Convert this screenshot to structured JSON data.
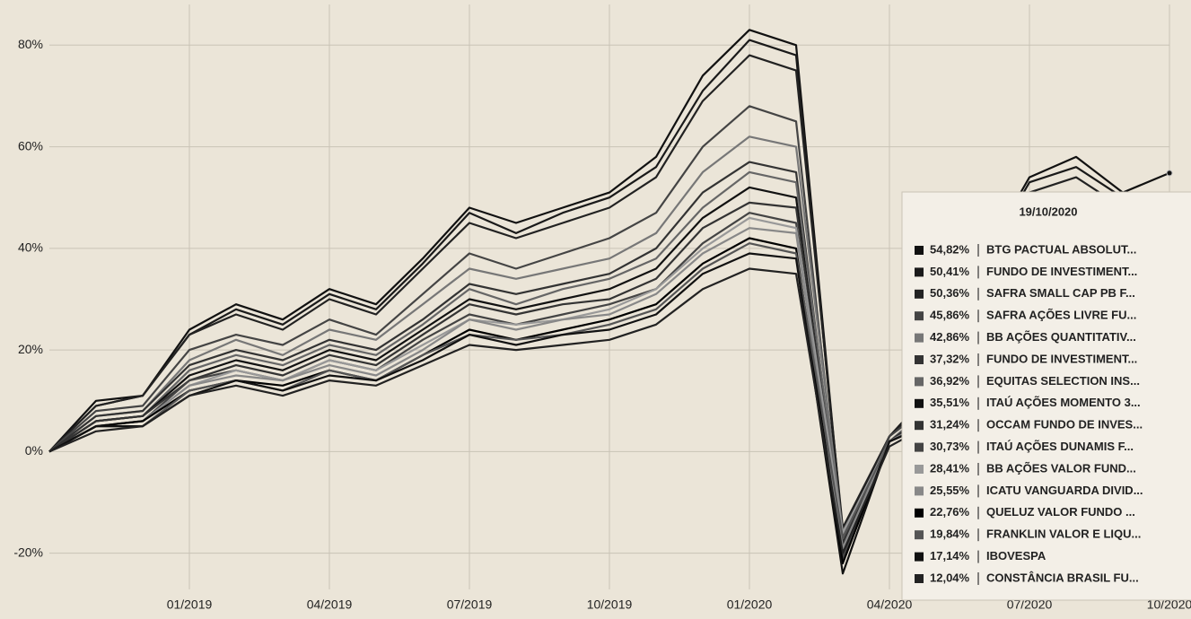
{
  "chart_data": {
    "type": "line",
    "x": [
      "10/2018",
      "11/2018",
      "12/2018",
      "01/2019",
      "02/2019",
      "03/2019",
      "04/2019",
      "05/2019",
      "06/2019",
      "07/2019",
      "08/2019",
      "09/2019",
      "10/2019",
      "11/2019",
      "12/2019",
      "01/2020",
      "02/2020",
      "03/2020",
      "04/2020",
      "05/2020",
      "06/2020",
      "07/2020",
      "08/2020",
      "09/2020",
      "10/2020"
    ],
    "xticks": [
      "01/2019",
      "04/2019",
      "07/2019",
      "10/2019",
      "01/2020",
      "04/2020",
      "07/2020",
      "10/2020"
    ],
    "ylim": [
      -25,
      88
    ],
    "yticks": [
      {
        "value": -20,
        "label": "-20%"
      },
      {
        "value": 0,
        "label": "0%"
      },
      {
        "value": 20,
        "label": "20%"
      },
      {
        "value": 40,
        "label": "40%"
      },
      {
        "value": 60,
        "label": "60%"
      },
      {
        "value": 80,
        "label": "80%"
      }
    ],
    "grid": true,
    "series": [
      {
        "name": "BTG PACTUAL ABSOLUT...",
        "color": "#111111",
        "values": [
          0,
          10,
          11,
          24,
          29,
          26,
          32,
          29,
          38,
          48,
          45,
          48,
          51,
          58,
          74,
          83,
          80,
          -16,
          3,
          13,
          38,
          54,
          58,
          51,
          54.82
        ]
      },
      {
        "name": "FUNDO DE INVESTIMENT...",
        "color": "#1a1a1a",
        "values": [
          0,
          9,
          11,
          23,
          28,
          25,
          31,
          28,
          37,
          47,
          43,
          47,
          50,
          56,
          71,
          81,
          78,
          -17,
          3,
          12,
          37,
          53,
          56,
          50,
          50.41
        ]
      },
      {
        "name": "SAFRA SMALL CAP PB F...",
        "color": "#222222",
        "values": [
          0,
          9,
          11,
          23,
          27,
          24,
          30,
          27,
          36,
          45,
          42,
          45,
          48,
          54,
          69,
          78,
          75,
          -15,
          3,
          12,
          36,
          51,
          54,
          48,
          50.36
        ]
      },
      {
        "name": "SAFRA AÇÕES LIVRE FU...",
        "color": "#444444",
        "values": [
          0,
          8,
          9,
          20,
          23,
          21,
          26,
          23,
          31,
          39,
          36,
          39,
          42,
          47,
          60,
          68,
          65,
          -18,
          3,
          10,
          31,
          44,
          47,
          42,
          45.86
        ]
      },
      {
        "name": "BB AÇÕES QUANTITATIV...",
        "color": "#777777",
        "values": [
          0,
          7,
          8,
          18,
          22,
          19,
          24,
          22,
          29,
          36,
          34,
          36,
          38,
          43,
          55,
          62,
          60,
          -16,
          2,
          10,
          29,
          41,
          43,
          38,
          42.86
        ]
      },
      {
        "name": "FUNDO DE INVESTIMENT...",
        "color": "#333333",
        "values": [
          0,
          7,
          8,
          17,
          20,
          18,
          22,
          20,
          26,
          33,
          31,
          33,
          35,
          40,
          51,
          57,
          55,
          -19,
          2,
          9,
          26,
          37,
          40,
          35,
          37.32
        ]
      },
      {
        "name": "EQUITAS SELECTION INS...",
        "color": "#666666",
        "values": [
          0,
          6,
          7,
          16,
          19,
          17,
          21,
          19,
          25,
          32,
          29,
          32,
          34,
          38,
          48,
          55,
          53,
          -17,
          2,
          8,
          25,
          36,
          38,
          34,
          36.92
        ]
      },
      {
        "name": "ITAÚ AÇÕES MOMENTO 3...",
        "color": "#111111",
        "values": [
          0,
          6,
          7,
          15,
          18,
          16,
          20,
          18,
          24,
          30,
          28,
          30,
          32,
          36,
          46,
          52,
          50,
          -20,
          2,
          8,
          24,
          34,
          36,
          32,
          35.51
        ]
      },
      {
        "name": "OCCAM FUNDO DE INVES...",
        "color": "#333333",
        "values": [
          0,
          6,
          7,
          14,
          17,
          15,
          19,
          17,
          23,
          29,
          27,
          29,
          30,
          34,
          44,
          49,
          48,
          -18,
          2,
          8,
          23,
          32,
          34,
          30,
          31.24
        ]
      },
      {
        "name": "ITAÚ AÇÕES DUNAMIS F...",
        "color": "#444444",
        "values": [
          0,
          5,
          6,
          14,
          16,
          14,
          18,
          16,
          22,
          27,
          25,
          27,
          29,
          32,
          41,
          47,
          45,
          -21,
          2,
          7,
          22,
          31,
          32,
          29,
          30.73
        ]
      },
      {
        "name": "BB AÇÕES VALOR FUND...",
        "color": "#999999",
        "values": [
          0,
          5,
          6,
          13,
          16,
          14,
          18,
          16,
          21,
          26,
          25,
          26,
          28,
          32,
          40,
          46,
          44,
          -16,
          2,
          7,
          21,
          30,
          32,
          28,
          28.41
        ]
      },
      {
        "name": "ICATU VANGUARDA DIVID...",
        "color": "#888888",
        "values": [
          0,
          5,
          6,
          13,
          15,
          14,
          17,
          15,
          20,
          26,
          24,
          26,
          27,
          31,
          39,
          44,
          43,
          -19,
          2,
          7,
          20,
          29,
          31,
          27,
          25.55
        ]
      },
      {
        "name": "QUELUZ VALOR FUNDO ...",
        "color": "#000000",
        "values": [
          0,
          5,
          6,
          12,
          14,
          13,
          16,
          14,
          19,
          24,
          22,
          24,
          26,
          29,
          37,
          42,
          40,
          -22,
          2,
          6,
          19,
          27,
          29,
          26,
          22.76
        ]
      },
      {
        "name": "FRANKLIN VALOR E LIQU...",
        "color": "#555555",
        "values": [
          0,
          5,
          5,
          12,
          14,
          12,
          16,
          14,
          19,
          23,
          22,
          23,
          25,
          28,
          36,
          41,
          39,
          -17,
          2,
          6,
          19,
          27,
          28,
          25,
          19.84
        ]
      },
      {
        "name": "IBOVESPA",
        "color": "#111111",
        "values": [
          0,
          5,
          5,
          11,
          14,
          12,
          15,
          14,
          18,
          23,
          21,
          23,
          24,
          27,
          35,
          39,
          38,
          -24,
          2,
          6,
          18,
          26,
          27,
          24,
          17.14
        ]
      },
      {
        "name": "CONSTÂNCIA BRASIL FU...",
        "color": "#222222",
        "values": [
          0,
          4,
          5,
          11,
          13,
          11,
          14,
          13,
          17,
          21,
          20,
          21,
          22,
          25,
          32,
          36,
          35,
          -20,
          1,
          6,
          17,
          24,
          25,
          22,
          12.04
        ]
      }
    ],
    "tooltip": {
      "title": "19/10/2020",
      "values": [
        54.82,
        50.41,
        50.36,
        45.86,
        42.86,
        37.32,
        36.92,
        35.51,
        31.24,
        30.73,
        28.41,
        25.55,
        22.76,
        19.84,
        17.14,
        12.04
      ],
      "value_labels": [
        "54,82%",
        "50,41%",
        "50,36%",
        "45,86%",
        "42,86%",
        "37,32%",
        "36,92%",
        "35,51%",
        "31,24%",
        "30,73%",
        "28,41%",
        "25,55%",
        "22,76%",
        "19,84%",
        "17,14%",
        "12,04%"
      ]
    }
  }
}
